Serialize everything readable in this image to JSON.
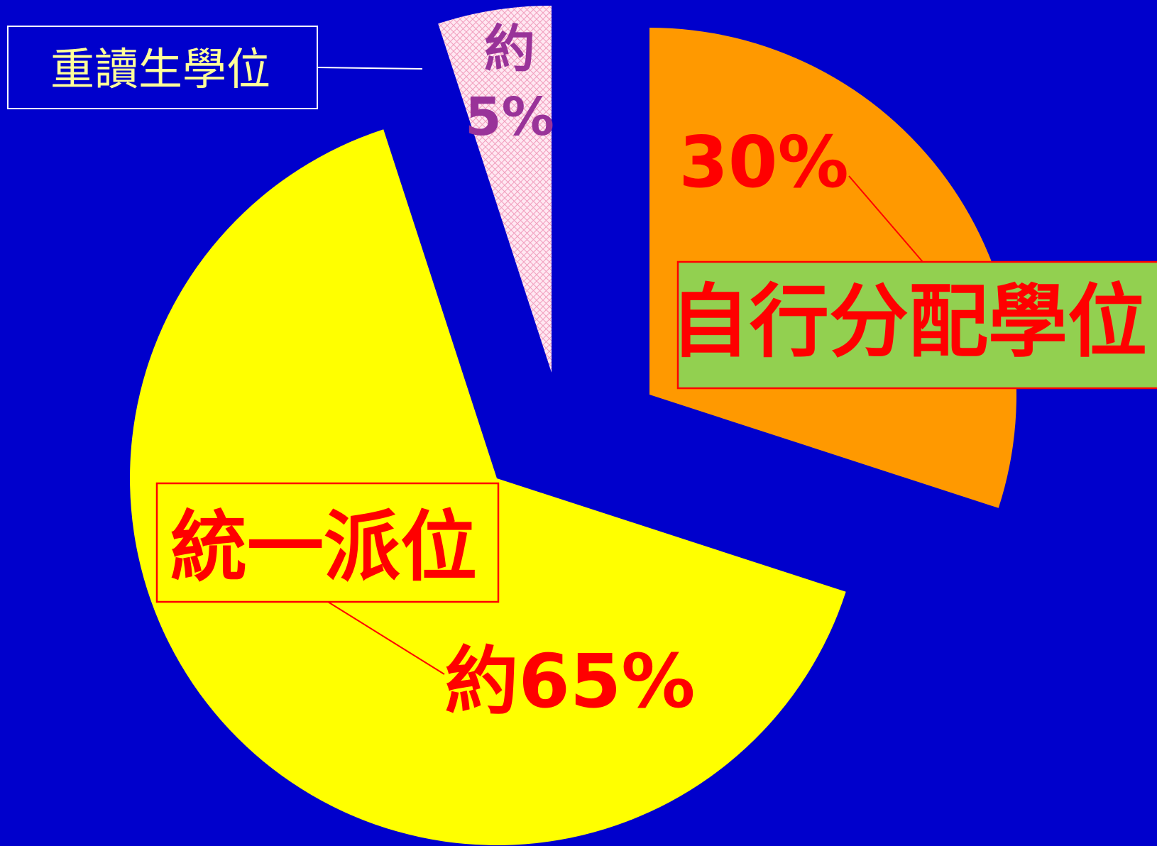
{
  "chart_data": {
    "type": "pie",
    "title": "",
    "start_angle_deg": 90,
    "direction": "clockwise",
    "slices": [
      {
        "label": "自行分配學位",
        "value": 30,
        "value_label": "30%",
        "color": "#FF9900",
        "label_color": "#FF0000",
        "label_box_fill": "#92D050",
        "label_box_border": "#FF0000",
        "exploded": true,
        "pattern": "none"
      },
      {
        "label": "統一派位",
        "value": 65,
        "value_label": "約65%",
        "color": "#FFFF00",
        "label_color": "#FF0000",
        "label_box_fill": "none",
        "label_box_border": "#FF0000",
        "exploded": true,
        "pattern": "none"
      },
      {
        "label": "重讀生學位",
        "value": 5,
        "value_label_prefix": "約",
        "value_label_value": "5%",
        "color": "#FFE4F0",
        "label_color": "#FFFF99",
        "label_box_fill": "none",
        "label_box_border": "#FFFFFF",
        "value_label_color": "#993399",
        "exploded": true,
        "pattern": "crosshatch"
      }
    ],
    "background_color": "#0000CC",
    "legend": "none"
  }
}
